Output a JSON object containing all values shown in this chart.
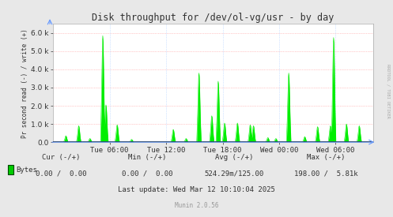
{
  "title": "Disk throughput for /dev/ol-vg/usr - by day",
  "ylabel": "Pr second read (-) / write (+)",
  "background_color": "#e8e8e8",
  "plot_bg_color": "#FFFFFF",
  "grid_color": "#FF9999",
  "line_color": "#00EE00",
  "zero_line_color": "#000000",
  "border_color": "#aaaaaa",
  "ylim": [
    0,
    6500
  ],
  "yticks": [
    0,
    1000,
    2000,
    3000,
    4000,
    5000,
    6000
  ],
  "xtick_labels": [
    "Tue 06:00",
    "Tue 12:00",
    "Tue 18:00",
    "Wed 00:00",
    "Wed 06:00"
  ],
  "xtick_hours": [
    6,
    12,
    18,
    24,
    30
  ],
  "total_hours": 34.0,
  "watermark": "RRDTOOL / TOBI OETIKER",
  "last_update": "Last update: Wed Mar 12 10:10:04 2025",
  "munin_version": "Munin 2.0.56",
  "text_color": "#333333",
  "watermark_color": "#aaaaaa",
  "munin_color": "#999999",
  "spike_positions": [
    0.04,
    0.08,
    0.115,
    0.155,
    0.165,
    0.2,
    0.245,
    0.375,
    0.415,
    0.455,
    0.495,
    0.515,
    0.535,
    0.575,
    0.615,
    0.625,
    0.67,
    0.695,
    0.735,
    0.785,
    0.825,
    0.865,
    0.875,
    0.915,
    0.955
  ],
  "spike_heights": [
    350,
    900,
    200,
    5850,
    2050,
    950,
    150,
    700,
    200,
    3800,
    1450,
    3350,
    1050,
    1050,
    950,
    900,
    250,
    200,
    3800,
    300,
    850,
    900,
    5750,
    1000,
    900
  ]
}
